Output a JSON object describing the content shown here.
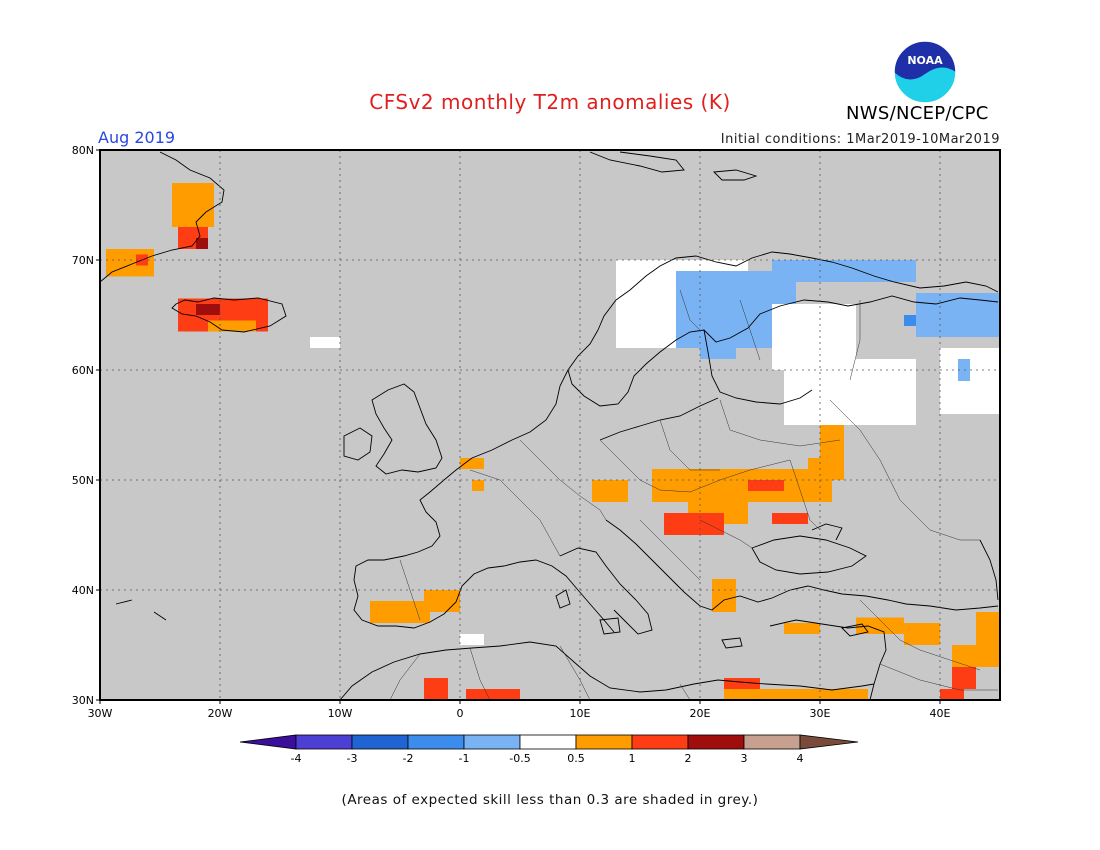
{
  "title": "CFSv2 monthly T2m anomalies (K)",
  "agency": "NWS/NCEP/CPC",
  "logo_text": "NOAA",
  "month_label": "Aug 2019",
  "initial_conditions": "Initial conditions: 1Mar2019-10Mar2019",
  "footnote": "(Areas of expected skill less than 0.3 are shaded in grey.)",
  "map": {
    "lon_range": [
      -30,
      45
    ],
    "lat_range": [
      30,
      80
    ],
    "background_color": "#c8c8c8",
    "lat_labels": [
      "30N",
      "40N",
      "50N",
      "60N",
      "70N",
      "80N"
    ],
    "lon_labels": [
      "30W",
      "20W",
      "10W",
      "0",
      "10E",
      "20E",
      "30E",
      "40E"
    ],
    "grid": "dotted",
    "anomaly_regions": [
      {
        "lon": [
          -29.5,
          -25.5
        ],
        "lat": [
          68.5,
          71
        ],
        "class": "0.5..1"
      },
      {
        "lon": [
          -27,
          -26
        ],
        "lat": [
          69.5,
          70.5
        ],
        "class": "1..2"
      },
      {
        "lon": [
          -24,
          -20.5
        ],
        "lat": [
          73,
          77
        ],
        "class": "0.5..1"
      },
      {
        "lon": [
          -23.5,
          -21
        ],
        "lat": [
          71,
          73
        ],
        "class": "1..2"
      },
      {
        "lon": [
          -22,
          -21
        ],
        "lat": [
          71,
          72
        ],
        "class": "2..3"
      },
      {
        "lon": [
          -23.5,
          -16
        ],
        "lat": [
          63.5,
          66.5
        ],
        "class": "1..2"
      },
      {
        "lon": [
          -21,
          -17
        ],
        "lat": [
          63.5,
          64.5
        ],
        "class": "0.5..1"
      },
      {
        "lon": [
          -22,
          -20
        ],
        "lat": [
          65,
          66
        ],
        "class": "2..3"
      },
      {
        "lon": [
          -12.5,
          -10
        ],
        "lat": [
          62,
          63
        ],
        "class": "-0.5..0.5"
      },
      {
        "lon": [
          13,
          24
        ],
        "lat": [
          62,
          70
        ],
        "class": "-0.5..0.5"
      },
      {
        "lon": [
          18,
          28
        ],
        "lat": [
          62,
          69
        ],
        "class": "-1..-0.5"
      },
      {
        "lon": [
          20,
          23
        ],
        "lat": [
          61,
          64
        ],
        "class": "-1..-0.5"
      },
      {
        "lon": [
          26,
          33
        ],
        "lat": [
          68,
          70
        ],
        "class": "-1..-0.5"
      },
      {
        "lon": [
          33,
          38
        ],
        "lat": [
          68,
          70
        ],
        "class": "-1..-0.5"
      },
      {
        "lon": [
          38,
          45
        ],
        "lat": [
          63,
          67
        ],
        "class": "-1..-0.5"
      },
      {
        "lon": [
          37,
          38
        ],
        "lat": [
          64,
          65
        ],
        "class": "-2..-1"
      },
      {
        "lon": [
          26,
          33
        ],
        "lat": [
          60,
          66
        ],
        "class": "-0.5..0.5"
      },
      {
        "lon": [
          27,
          38
        ],
        "lat": [
          55,
          61
        ],
        "class": "-0.5..0.5"
      },
      {
        "lon": [
          40,
          45
        ],
        "lat": [
          56,
          62
        ],
        "class": "-0.5..0.5"
      },
      {
        "lon": [
          35,
          37
        ],
        "lat": [
          57,
          60
        ],
        "class": "-0.5..0.5"
      },
      {
        "lon": [
          41.5,
          42.5
        ],
        "lat": [
          59,
          61
        ],
        "class": "-1..-0.5"
      },
      {
        "lon": [
          16,
          27
        ],
        "lat": [
          48,
          51
        ],
        "class": "0.5..1"
      },
      {
        "lon": [
          19,
          24
        ],
        "lat": [
          46,
          48.5
        ],
        "class": "0.5..1"
      },
      {
        "lon": [
          24,
          31
        ],
        "lat": [
          48,
          51
        ],
        "class": "0.5..1"
      },
      {
        "lon": [
          29,
          32
        ],
        "lat": [
          50,
          52
        ],
        "class": "0.5..1"
      },
      {
        "lon": [
          30,
          32
        ],
        "lat": [
          52,
          55
        ],
        "class": "0.5..1"
      },
      {
        "lon": [
          17,
          22
        ],
        "lat": [
          45,
          47
        ],
        "class": "1..2"
      },
      {
        "lon": [
          24,
          27
        ],
        "lat": [
          49,
          50
        ],
        "class": "1..2"
      },
      {
        "lon": [
          26,
          29
        ],
        "lat": [
          46,
          47
        ],
        "class": "1..2"
      },
      {
        "lon": [
          11,
          14
        ],
        "lat": [
          48,
          50
        ],
        "class": "0.5..1"
      },
      {
        "lon": [
          0,
          2
        ],
        "lat": [
          51,
          52
        ],
        "class": "0.5..1"
      },
      {
        "lon": [
          1,
          2
        ],
        "lat": [
          49,
          50
        ],
        "class": "0.5..1"
      },
      {
        "lon": [
          -7.5,
          -2.5
        ],
        "lat": [
          37,
          39
        ],
        "class": "0.5..1"
      },
      {
        "lon": [
          -3,
          0
        ],
        "lat": [
          38,
          40
        ],
        "class": "0.5..1"
      },
      {
        "lon": [
          0,
          2
        ],
        "lat": [
          35,
          36
        ],
        "class": "-0.5..0.5"
      },
      {
        "lon": [
          21,
          23
        ],
        "lat": [
          38,
          41
        ],
        "class": "0.5..1"
      },
      {
        "lon": [
          27,
          30
        ],
        "lat": [
          36,
          37
        ],
        "class": "0.5..1"
      },
      {
        "lon": [
          33,
          37
        ],
        "lat": [
          36,
          37.5
        ],
        "class": "0.5..1"
      },
      {
        "lon": [
          37,
          40
        ],
        "lat": [
          35,
          37
        ],
        "class": "0.5..1"
      },
      {
        "lon": [
          41,
          45
        ],
        "lat": [
          33,
          35
        ],
        "class": "0.5..1"
      },
      {
        "lon": [
          43,
          45
        ],
        "lat": [
          35,
          38
        ],
        "class": "0.5..1"
      },
      {
        "lon": [
          41,
          43
        ],
        "lat": [
          31,
          33
        ],
        "class": "1..2"
      },
      {
        "lon": [
          40,
          42
        ],
        "lat": [
          30,
          31
        ],
        "class": "1..2"
      },
      {
        "lon": [
          22,
          34
        ],
        "lat": [
          30,
          31
        ],
        "class": "0.5..1"
      },
      {
        "lon": [
          22,
          25
        ],
        "lat": [
          31,
          32
        ],
        "class": "1..2"
      },
      {
        "lon": [
          0.5,
          5
        ],
        "lat": [
          30,
          31
        ],
        "class": "1..2"
      },
      {
        "lon": [
          -3,
          -1
        ],
        "lat": [
          30,
          32
        ],
        "class": "1..2"
      }
    ]
  },
  "legend": {
    "tick_labels": [
      "-4",
      "-3",
      "-2",
      "-1",
      "-0.5",
      "0.5",
      "1",
      "2",
      "3",
      "4"
    ],
    "colors": [
      "#3a0f9a",
      "#4c3fd4",
      "#1f64d2",
      "#3c8ced",
      "#7ab3f3",
      "#ffffff",
      "#ff9c00",
      "#ff3d14",
      "#a00d0d",
      "#c7a090",
      "#7a4b3a"
    ]
  },
  "colors": {
    "title": "#e02020",
    "month_label": "#2848e0",
    "skill_grey": "#c8c8c8",
    "logo_blue": "#1f2fa8",
    "logo_cyan": "#1fd0e8"
  }
}
